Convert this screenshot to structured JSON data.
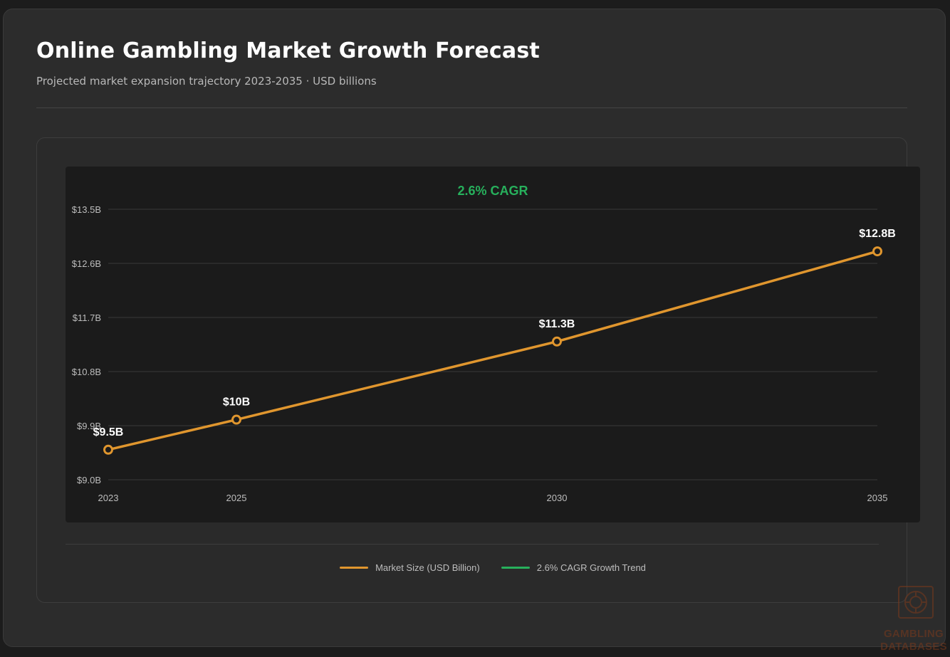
{
  "header": {
    "title": "Online Gambling Market Growth Forecast",
    "subtitle": "Projected market expansion trajectory 2023-2035 · USD billions"
  },
  "chart_data": {
    "type": "line",
    "annotation": "2.6% CAGR",
    "x": [
      2023,
      2025,
      2030,
      2035
    ],
    "xlim": [
      2023,
      2035
    ],
    "ylim": [
      9.0,
      13.5
    ],
    "y_ticks": [
      9.0,
      9.9,
      10.8,
      11.7,
      12.6,
      13.5
    ],
    "y_tick_labels": [
      "$9.0B",
      "$9.9B",
      "$10.8B",
      "$11.7B",
      "$12.6B",
      "$13.5B"
    ],
    "x_tick_labels": [
      "2023",
      "2025",
      "2030",
      "2035"
    ],
    "grid": true,
    "legend_position": "bottom-center",
    "series": [
      {
        "name": "Market Size (USD Billion)",
        "color": "#e0962e",
        "values": [
          9.5,
          10.0,
          11.3,
          12.8
        ],
        "data_labels": [
          "$9.5B",
          "$10B",
          "$11.3B",
          "$12.8B"
        ]
      }
    ],
    "legend": [
      {
        "label": "Market Size (USD Billion)",
        "color": "#e0962e"
      },
      {
        "label": "2.6% CAGR Growth Trend",
        "color": "#27b05c"
      }
    ],
    "colors": {
      "annotation": "#27b05c",
      "grid": "#3a3a3a",
      "tick_text": "#bdbdbd",
      "data_label": "#ffffff"
    }
  },
  "watermark": {
    "line1": "GAMBLING",
    "line2": "DATABASES",
    "icon": "roulette-chip-icon"
  }
}
